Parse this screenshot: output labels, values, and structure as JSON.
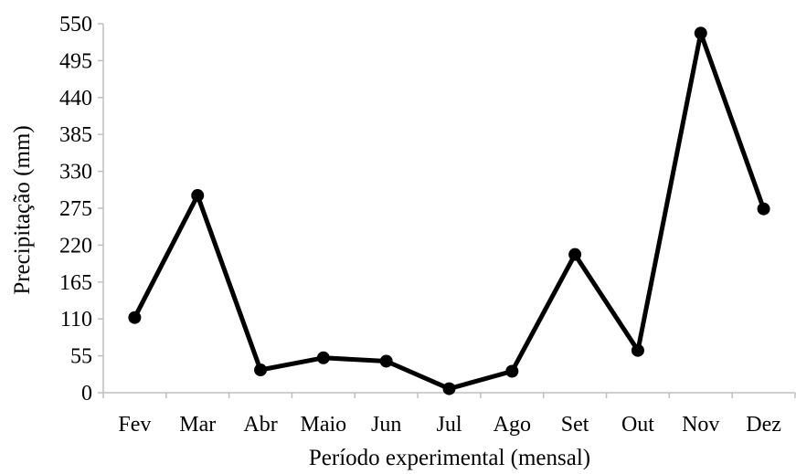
{
  "chart_data": {
    "type": "line",
    "categories": [
      "Fev",
      "Mar",
      "Abr",
      "Maio",
      "Jun",
      "Jul",
      "Ago",
      "Set",
      "Out",
      "Nov",
      "Dez"
    ],
    "series": [
      {
        "values": [
          112,
          294,
          34,
          52,
          47,
          6,
          32,
          206,
          63,
          536,
          274
        ],
        "color": "#000000",
        "marker": "circle"
      }
    ],
    "xlabel": "Período experimental (mensal)",
    "ylabel": "Precipitação (mm)",
    "ylim": [
      0,
      550
    ],
    "yticks": [
      0,
      55,
      110,
      165,
      220,
      275,
      330,
      385,
      440,
      495,
      550
    ],
    "grid": false,
    "axis_color": "#bfbfbf"
  }
}
